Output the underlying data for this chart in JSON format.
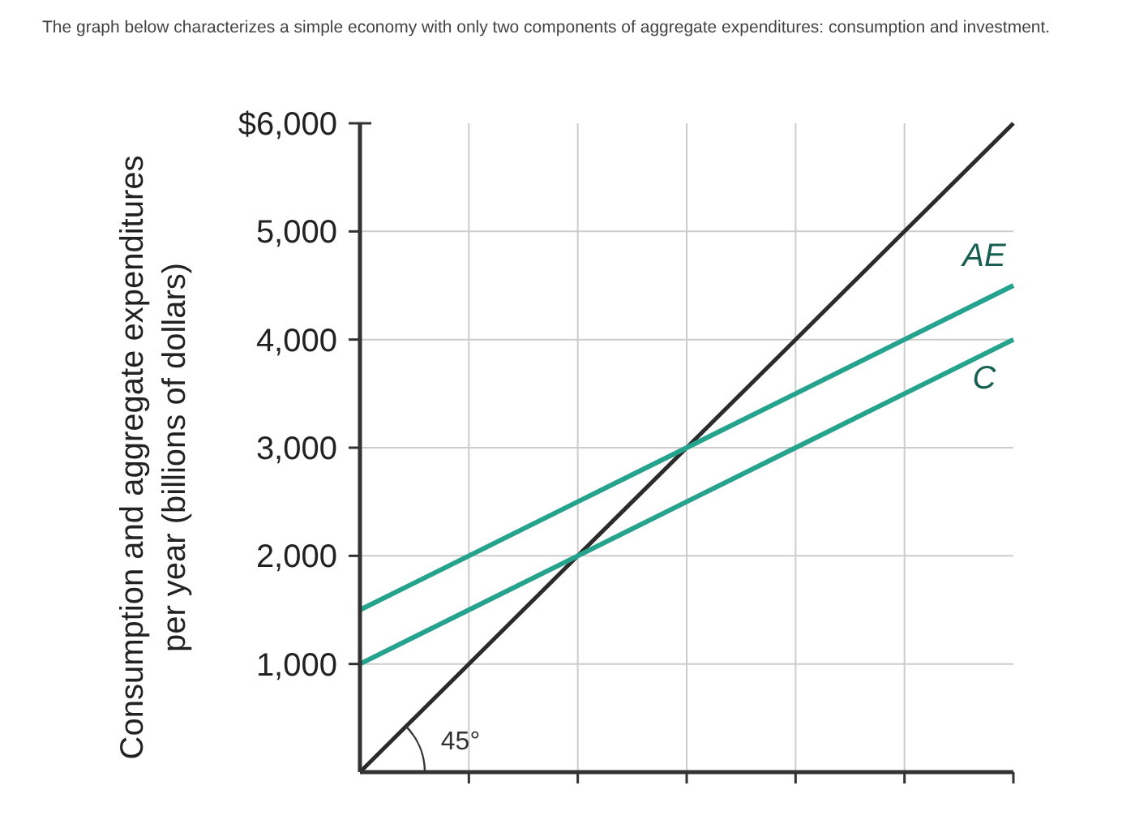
{
  "chart_data": {
    "type": "line",
    "title": "The graph below characterizes a simple economy with only two components of aggregate expenditures: consumption and investment.",
    "ylabel": "Consumption and aggregate expenditures\nper year (billions of dollars)",
    "categories": [
      null,
      null,
      null,
      null,
      null,
      null,
      null
    ],
    "series": [
      {
        "color": "#2b2b2b",
        "values": [
          0,
          1000,
          2000,
          3000,
          4000,
          5000,
          6000
        ]
      },
      {
        "name": "AE",
        "color": "#26a38c",
        "values": [
          1500,
          2000,
          2500,
          3000,
          3500,
          4000,
          4500
        ]
      },
      {
        "name": "C",
        "color": "#26a38c",
        "values": [
          1000,
          1500,
          2000,
          2500,
          3000,
          3500,
          4000
        ]
      }
    ],
    "ylim": [
      0,
      6000
    ],
    "yticks": [
      {
        "value": 1000,
        "label": "1,000"
      },
      {
        "value": 2000,
        "label": "2,000"
      },
      {
        "value": 3000,
        "label": "3,000"
      },
      {
        "value": 4000,
        "label": "4,000"
      },
      {
        "value": 5000,
        "label": "5,000"
      },
      {
        "value": 6000,
        "label": "$6,000"
      }
    ],
    "grid": true,
    "marker": "none",
    "line_style": "solid",
    "annotations": [
      "45°"
    ]
  }
}
